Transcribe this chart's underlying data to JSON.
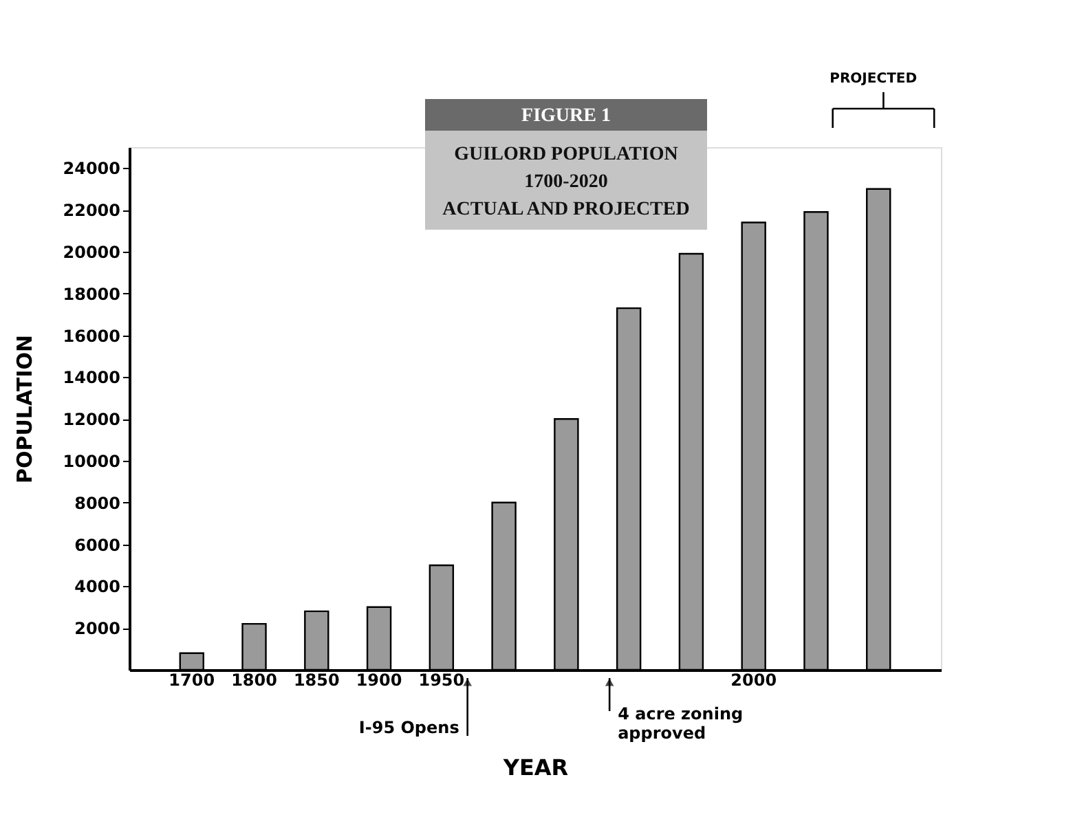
{
  "chart_data": {
    "type": "bar",
    "title": "FIGURE 1",
    "subtitle": "GUILORD POPULATION\n1700-2020\nACTUAL AND PROJECTED",
    "xlabel": "YEAR",
    "ylabel": "POPULATION",
    "categories": [
      "1700",
      "1800",
      "1850",
      "1900",
      "1950",
      null,
      null,
      null,
      null,
      "2000",
      null,
      null
    ],
    "values": [
      800,
      2200,
      2800,
      3000,
      5000,
      8000,
      12000,
      17300,
      19900,
      21400,
      21900,
      23000
    ],
    "color": "#9a9a9a",
    "ylim": [
      0,
      25000
    ],
    "yticks": [
      2000,
      4000,
      6000,
      8000,
      10000,
      12000,
      14000,
      16000,
      18000,
      20000,
      22000,
      24000
    ],
    "annotations": [
      "I-95 Opens",
      "4 acre zoning approved",
      "PROJECTED"
    ],
    "grid": false
  }
}
